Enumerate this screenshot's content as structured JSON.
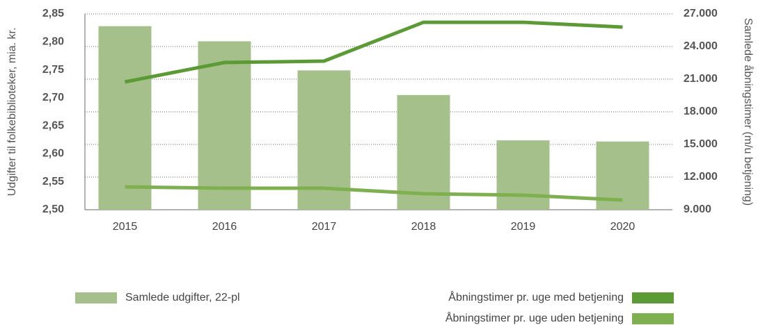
{
  "chart_data": {
    "type": "bar",
    "y_label": "Udgifter til folkebiblioteker, mia. kr.",
    "y2_label": "Samlede åbningstimer (m/u betjening)",
    "categories": [
      "2015",
      "2016",
      "2017",
      "2018",
      "2019",
      "2020"
    ],
    "series": [
      {
        "name": "Samlede udgifter, 22-pl",
        "type": "bar",
        "axis": "y",
        "color": "#a6c08b",
        "values": [
          2.828,
          2.801,
          2.749,
          2.705,
          2.624,
          2.622
        ]
      },
      {
        "name": "Åbningstimer pr. uge med betjening",
        "type": "line",
        "axis": "y2",
        "color": "#5b9a35",
        "values": [
          20750,
          22530,
          22660,
          26230,
          26230,
          25790
        ]
      },
      {
        "name": "Åbningstimer pr. uge uden betjening",
        "type": "line",
        "axis": "y2",
        "color": "#7fb04f",
        "values": [
          11100,
          10980,
          10980,
          10470,
          10340,
          9890
        ]
      }
    ],
    "ylim": [
      2.5,
      2.85
    ],
    "yticks": [
      {
        "value": 2.5,
        "label": "2,50"
      },
      {
        "value": 2.55,
        "label": "2,55"
      },
      {
        "value": 2.6,
        "label": "2,60"
      },
      {
        "value": 2.65,
        "label": "2,65"
      },
      {
        "value": 2.7,
        "label": "2,70"
      },
      {
        "value": 2.75,
        "label": "2,75"
      },
      {
        "value": 2.8,
        "label": "2,80"
      },
      {
        "value": 2.85,
        "label": "2,85"
      }
    ],
    "y2lim": [
      9000,
      27000
    ],
    "y2ticks": [
      {
        "value": 9000,
        "label": "9.000"
      },
      {
        "value": 12000,
        "label": "12.000"
      },
      {
        "value": 15000,
        "label": "15.000"
      },
      {
        "value": 18000,
        "label": "18.000"
      },
      {
        "value": 21000,
        "label": "21.000"
      },
      {
        "value": 24000,
        "label": "24.000"
      },
      {
        "value": 27000,
        "label": "27.000"
      }
    ],
    "grid": true
  }
}
